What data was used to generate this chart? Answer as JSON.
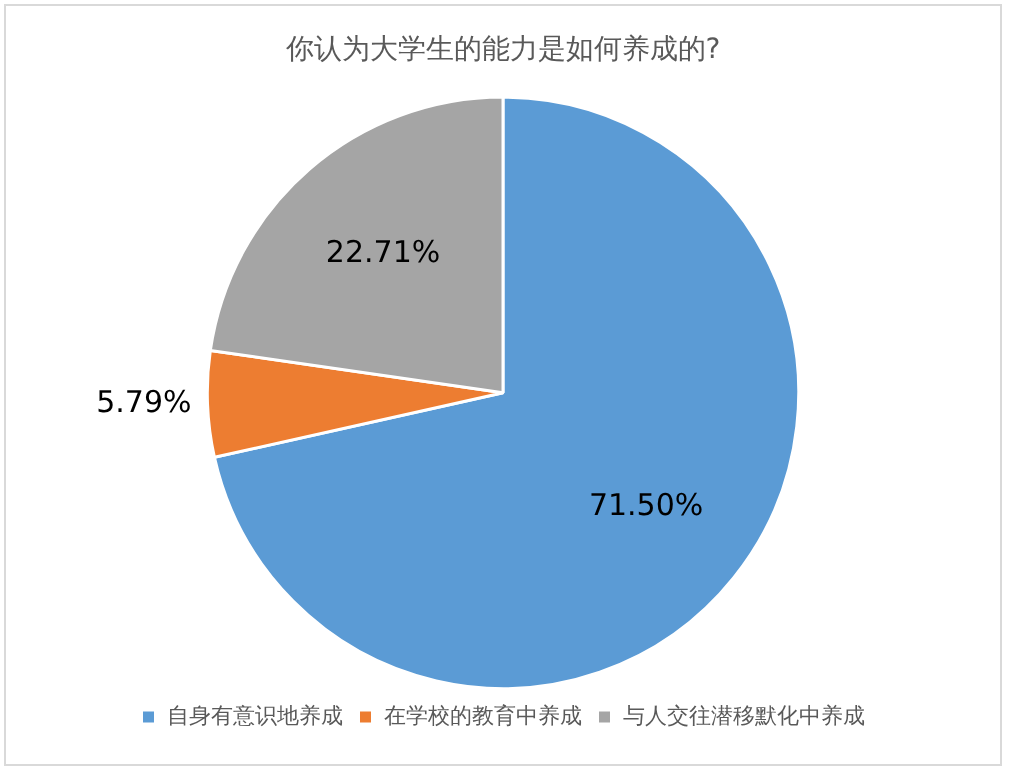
{
  "chart_data": {
    "type": "pie",
    "title": "你认为大学生的能力是如何养成的?",
    "categories": [
      "自身有意识地养成",
      "在学校的教育中养成",
      "与人交往潜移默化中养成"
    ],
    "values": [
      71.5,
      5.79,
      22.71
    ],
    "colors": [
      "#5b9bd5",
      "#ed7d31",
      "#a5a5a5"
    ],
    "value_labels": [
      "71.50%",
      "5.79%",
      "22.71%"
    ],
    "legend": "bottom"
  }
}
